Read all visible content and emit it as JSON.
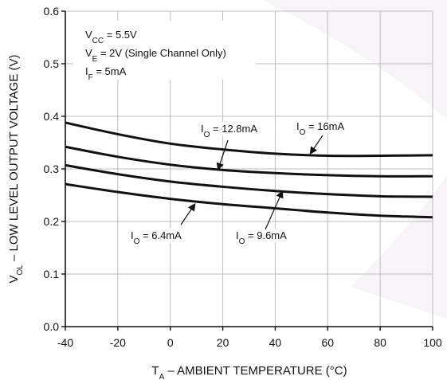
{
  "chart_data": {
    "type": "line",
    "title": "",
    "xlabel": {
      "main": "T",
      "sub": "A",
      "rest": "  – AMBIENT TEMPERATURE (°C)"
    },
    "ylabel": {
      "main": "V",
      "sub": "OL",
      "rest": " – LOW LEVEL OUTPUT VOLTAGE (V)"
    },
    "xlim": [
      -40,
      100
    ],
    "ylim": [
      0,
      0.6
    ],
    "xticks": [
      -40,
      -20,
      0,
      20,
      40,
      60,
      80,
      100
    ],
    "xtick_labels": [
      "-40",
      "-20",
      "0",
      "20",
      "40",
      "60",
      "80",
      "100"
    ],
    "yticks": [
      0,
      0.1,
      0.2,
      0.3,
      0.4,
      0.5,
      0.6
    ],
    "ytick_labels": [
      "0.0",
      "0.1",
      "0.2",
      "0.3",
      "0.4",
      "0.5",
      "0.6"
    ],
    "grid": true,
    "conditions": [
      {
        "main": "V",
        "sub": "CC",
        "rest": " = 5.5V"
      },
      {
        "main": "V",
        "sub": "E",
        "rest": " = 2V (Single Channel Only)"
      },
      {
        "main": "I",
        "sub": "F",
        "rest": " = 5mA"
      }
    ],
    "series": [
      {
        "label": {
          "main": "I",
          "sub": "O",
          "rest": " = 16mA"
        },
        "x": [
          -40,
          -20,
          0,
          20,
          40,
          60,
          80,
          100
        ],
        "y": [
          0.388,
          0.366,
          0.348,
          0.337,
          0.329,
          0.325,
          0.325,
          0.326
        ]
      },
      {
        "label": {
          "main": "I",
          "sub": "O",
          "rest": " = 12.8mA"
        },
        "x": [
          -40,
          -20,
          0,
          20,
          40,
          60,
          80,
          100
        ],
        "y": [
          0.342,
          0.323,
          0.308,
          0.298,
          0.292,
          0.288,
          0.286,
          0.286
        ]
      },
      {
        "label": {
          "main": "I",
          "sub": "O",
          "rest": " = 9.6mA"
        },
        "x": [
          -40,
          -20,
          0,
          20,
          40,
          60,
          80,
          100
        ],
        "y": [
          0.307,
          0.29,
          0.276,
          0.266,
          0.258,
          0.252,
          0.248,
          0.247
        ]
      },
      {
        "label": {
          "main": "I",
          "sub": "O",
          "rest": " = 6.4mA"
        },
        "x": [
          -40,
          -20,
          0,
          20,
          40,
          60,
          80,
          100
        ],
        "y": [
          0.271,
          0.256,
          0.243,
          0.233,
          0.225,
          0.217,
          0.211,
          0.208
        ]
      }
    ]
  }
}
